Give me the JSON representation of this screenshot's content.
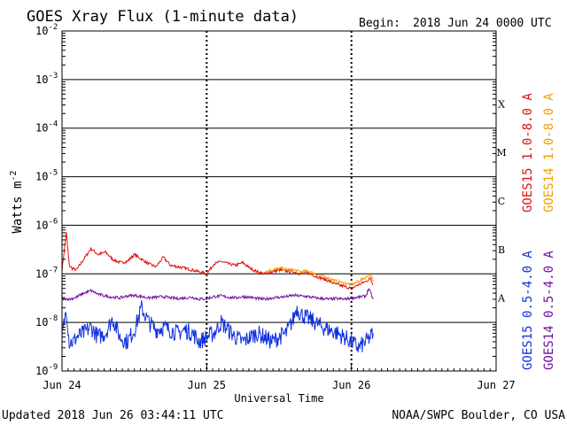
{
  "chart_data": {
    "type": "line",
    "title": "GOES Xray Flux (1-minute data)",
    "begin_label": "Begin:",
    "begin_value": "2018 Jun 24 0000 UTC",
    "ylabel_base": "Watts m",
    "ylabel_exp": "-2",
    "xlabel": "Universal Time",
    "yscale": "log",
    "ylim": [
      1e-09,
      0.01
    ],
    "xlim": [
      0,
      3
    ],
    "y_ticks": [
      {
        "value": 0.01,
        "base": "10",
        "exp": "-2"
      },
      {
        "value": 0.001,
        "base": "10",
        "exp": "-3"
      },
      {
        "value": 0.0001,
        "base": "10",
        "exp": "-4"
      },
      {
        "value": 1e-05,
        "base": "10",
        "exp": "-5"
      },
      {
        "value": 1e-06,
        "base": "10",
        "exp": "-6"
      },
      {
        "value": 1e-07,
        "base": "10",
        "exp": "-7"
      },
      {
        "value": 1e-08,
        "base": "10",
        "exp": "-8"
      },
      {
        "value": 1e-09,
        "base": "10",
        "exp": "-9"
      }
    ],
    "x_ticks": [
      {
        "value": 0,
        "label": "Jun 24"
      },
      {
        "value": 1,
        "label": "Jun 25"
      },
      {
        "value": 2,
        "label": "Jun 26"
      },
      {
        "value": 3,
        "label": "Jun 27"
      }
    ],
    "flare_classes": [
      {
        "label": "X",
        "low": 0.0001,
        "high": 0.001
      },
      {
        "label": "M",
        "low": 1e-05,
        "high": 0.0001
      },
      {
        "label": "C",
        "low": 1e-06,
        "high": 1e-05
      },
      {
        "label": "B",
        "low": 1e-07,
        "high": 1e-06
      },
      {
        "label": "A",
        "low": 1e-08,
        "high": 1e-07
      }
    ],
    "grid": true,
    "legend_placement": "right-outside",
    "series": [
      {
        "name": "GOES15 1.0-8.0 A",
        "color": "#e01010",
        "x": [
          0,
          0.03,
          0.05,
          0.07,
          0.1,
          0.15,
          0.2,
          0.25,
          0.3,
          0.35,
          0.4,
          0.45,
          0.5,
          0.55,
          0.6,
          0.65,
          0.7,
          0.75,
          0.8,
          0.85,
          0.9,
          0.95,
          1.0,
          1.05,
          1.1,
          1.15,
          1.2,
          1.25,
          1.3,
          1.35,
          1.4,
          1.45,
          1.5,
          1.55,
          1.6,
          1.65,
          1.7,
          1.75,
          1.8,
          1.85,
          1.9,
          1.95,
          2.0,
          2.05,
          2.1,
          2.13,
          2.15
        ],
        "y": [
          1.2e-07,
          7e-07,
          1.5e-07,
          1.3e-07,
          1.2e-07,
          2e-07,
          3.3e-07,
          2.5e-07,
          2.8e-07,
          2e-07,
          1.7e-07,
          1.8e-07,
          2.5e-07,
          2e-07,
          1.6e-07,
          1.4e-07,
          2.2e-07,
          1.5e-07,
          1.4e-07,
          1.3e-07,
          1.2e-07,
          1.1e-07,
          1e-07,
          1.6e-07,
          1.8e-07,
          1.6e-07,
          1.5e-07,
          1.7e-07,
          1.3e-07,
          1.1e-07,
          1e-07,
          1.1e-07,
          1.2e-07,
          1.15e-07,
          1.1e-07,
          1e-07,
          1.05e-07,
          9e-08,
          8e-08,
          7e-08,
          6e-08,
          5.5e-08,
          5e-08,
          6e-08,
          7e-08,
          8e-08,
          6e-08
        ]
      },
      {
        "name": "GOES14 1.0-8.0 A",
        "color": "#f0a000",
        "x": [
          1.4,
          1.45,
          1.5,
          1.55,
          1.6,
          1.65,
          1.7,
          1.75,
          1.8,
          1.85,
          1.9,
          1.95,
          2.0,
          2.05,
          2.1,
          2.13,
          2.15
        ],
        "y": [
          1.1e-07,
          1.2e-07,
          1.3e-07,
          1.25e-07,
          1.2e-07,
          1.1e-07,
          1.15e-07,
          1e-07,
          9e-08,
          8e-08,
          7e-08,
          6.5e-08,
          6e-08,
          7e-08,
          8.5e-08,
          1e-07,
          7e-08
        ]
      },
      {
        "name": "GOES15 0.5-4.0 A",
        "color": "#1030e0",
        "x": [
          0,
          0.03,
          0.05,
          0.08,
          0.1,
          0.15,
          0.2,
          0.25,
          0.3,
          0.35,
          0.4,
          0.45,
          0.5,
          0.55,
          0.6,
          0.65,
          0.7,
          0.75,
          0.8,
          0.85,
          0.9,
          0.95,
          1.0,
          1.05,
          1.1,
          1.15,
          1.2,
          1.25,
          1.3,
          1.35,
          1.4,
          1.45,
          1.5,
          1.55,
          1.6,
          1.62,
          1.65,
          1.7,
          1.75,
          1.8,
          1.85,
          1.9,
          1.95,
          2.0,
          2.05,
          2.1,
          2.13,
          2.15
        ],
        "y": [
          5e-09,
          2e-08,
          4e-09,
          4e-09,
          5e-09,
          6e-09,
          8e-09,
          5e-09,
          6e-09,
          1.2e-08,
          5e-09,
          4e-09,
          7e-09,
          2e-08,
          1e-08,
          7e-09,
          8e-09,
          7e-09,
          6e-09,
          7e-09,
          6e-09,
          4e-09,
          5e-09,
          6e-09,
          1e-08,
          7e-09,
          5e-09,
          4e-09,
          5e-09,
          6e-09,
          5e-09,
          4e-09,
          5e-09,
          6e-09,
          1.2e-08,
          2e-08,
          1.5e-08,
          1.2e-08,
          1e-08,
          8e-09,
          7e-09,
          6e-09,
          5e-09,
          4e-09,
          3e-09,
          4e-09,
          5e-09,
          6e-09
        ]
      },
      {
        "name": "GOES14 0.5-4.0 A",
        "color": "#7010a0",
        "x": [
          0,
          0.05,
          0.1,
          0.15,
          0.2,
          0.25,
          0.3,
          0.35,
          0.4,
          0.45,
          0.5,
          0.55,
          0.6,
          0.65,
          0.7,
          0.75,
          0.8,
          0.85,
          0.9,
          0.95,
          1.0,
          1.05,
          1.1,
          1.15,
          1.2,
          1.25,
          1.3,
          1.35,
          1.4,
          1.45,
          1.5,
          1.55,
          1.6,
          1.65,
          1.7,
          1.75,
          1.8,
          1.85,
          1.9,
          1.95,
          2.0,
          2.05,
          2.1,
          2.12,
          2.15
        ],
        "y": [
          3.2e-08,
          3e-08,
          3.3e-08,
          4e-08,
          4.5e-08,
          3.8e-08,
          3.5e-08,
          3.3e-08,
          3.2e-08,
          3.5e-08,
          3.6e-08,
          3.4e-08,
          3.2e-08,
          3.3e-08,
          3.4e-08,
          3.2e-08,
          3.1e-08,
          3.2e-08,
          3.3e-08,
          3e-08,
          3.1e-08,
          3.4e-08,
          3.5e-08,
          3.3e-08,
          3.2e-08,
          3.4e-08,
          3.3e-08,
          3.1e-08,
          3e-08,
          3.2e-08,
          3.3e-08,
          3.4e-08,
          3.6e-08,
          3.5e-08,
          3.4e-08,
          3.2e-08,
          3.1e-08,
          3e-08,
          3.1e-08,
          3e-08,
          3.2e-08,
          3.3e-08,
          3.5e-08,
          5e-08,
          3e-08
        ]
      }
    ]
  },
  "footer": {
    "updated": "Updated 2018 Jun 26 03:44:11 UTC",
    "credit": "NOAA/SWPC Boulder, CO USA"
  }
}
